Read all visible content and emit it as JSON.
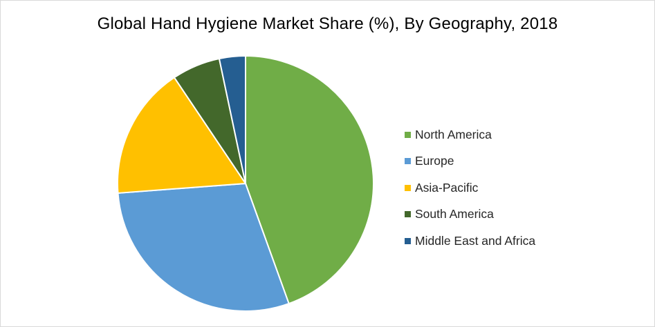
{
  "chart_data": {
    "type": "pie",
    "title": "Global Hand Hygiene Market Share (%), By Geography,  2018",
    "categories": [
      "North America",
      "Europe",
      "Asia-Pacific",
      "South America",
      "Middle East and Africa"
    ],
    "values": [
      44.5,
      29.3,
      16.8,
      6.1,
      3.3
    ],
    "colors": [
      "#70ad47",
      "#5b9bd5",
      "#ffc000",
      "#43682b",
      "#255e91"
    ],
    "legend_position": "right",
    "start_angle": "12 o'clock",
    "direction": "clockwise"
  }
}
